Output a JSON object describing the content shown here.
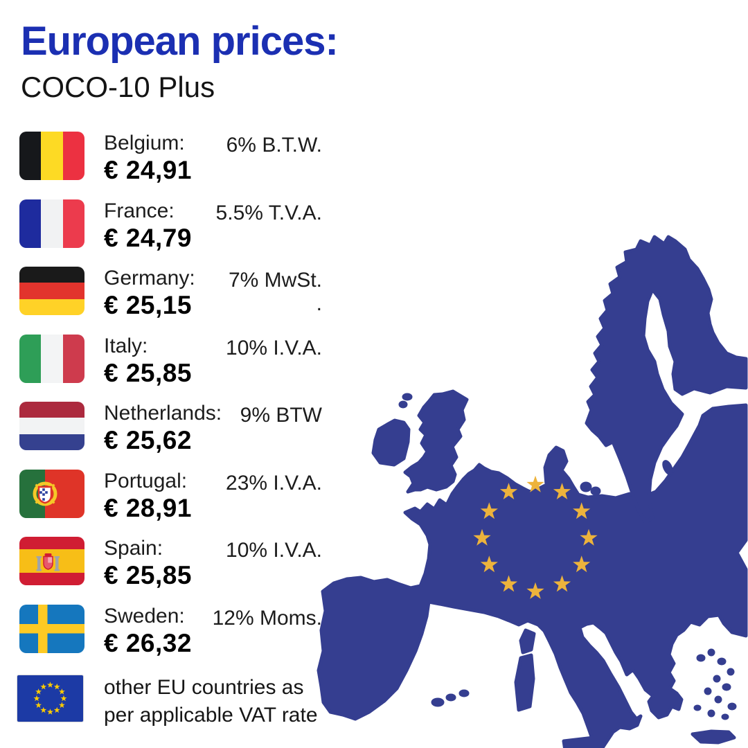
{
  "header": {
    "title": "European prices:",
    "subtitle": "COCO-10 Plus"
  },
  "colors": {
    "title_blue": "#1B2FB2",
    "map_blue": "#353E90",
    "map_star_gold": "#EDB33C",
    "text_dark": "#1c1c1c"
  },
  "rows": [
    {
      "country": "Belgium:",
      "price": "€ 24,91",
      "vat_lines": [
        "6% B.T.W."
      ],
      "flag": {
        "name": "belgium-flag",
        "type": "cols",
        "stripes": [
          "#16181B",
          "#FDDA24",
          "#EC3141"
        ]
      }
    },
    {
      "country": "France:",
      "price": "€ 24,79",
      "vat_lines": [
        "5.5% T.V.A."
      ],
      "flag": {
        "name": "france-flag",
        "type": "cols",
        "stripes": [
          "#1E2B9E",
          "#F1F2F3",
          "#EC3B4D"
        ]
      }
    },
    {
      "country": "Germany:",
      "price": "€ 25,15",
      "vat_lines": [
        "7% MwSt.",
        "."
      ],
      "flag": {
        "name": "germany-flag",
        "type": "rws",
        "stripes": [
          "#1A1A1A",
          "#E2342D",
          "#FFD227"
        ]
      }
    },
    {
      "country": "Italy:",
      "price": "€ 25,85",
      "vat_lines": [
        "10% I.V.A."
      ],
      "flag": {
        "name": "italy-flag",
        "type": "cols",
        "stripes": [
          "#2E9E57",
          "#F3F4F5",
          "#CE3B4D"
        ]
      }
    },
    {
      "country": "Netherlands:",
      "price": "€ 25,62",
      "vat_lines": [
        "9% BTW"
      ],
      "flag": {
        "name": "netherlands-flag",
        "type": "rws",
        "stripes": [
          "#AC2A3E",
          "#F2F3F4",
          "#35418F"
        ]
      }
    },
    {
      "country": "Portugal:",
      "price": "€ 28,91",
      "vat_lines": [
        "23% I.V.A."
      ],
      "flag": {
        "name": "portugal-flag",
        "type": "portugal",
        "green": "#26713C",
        "red": "#DF3428",
        "gold": "#F5C828",
        "shield_blue": "#2B3F9E"
      }
    },
    {
      "country": "Spain:",
      "price": "€ 25,85",
      "vat_lines": [
        "10% I.V.A."
      ],
      "flag": {
        "name": "spain-flag",
        "type": "spain",
        "red": "#D01D33",
        "yellow": "#F7BE17",
        "pillar": "#9FA4AA",
        "shield": "#E8586B"
      }
    },
    {
      "country": "Sweden:",
      "price": "€ 26,32",
      "vat_lines": [
        "12% Moms."
      ],
      "flag": {
        "name": "sweden-flag",
        "type": "sweden",
        "blue": "#1577BE",
        "yellow": "#FDCA24"
      }
    }
  ],
  "footer": {
    "lines": [
      "other EU countries as",
      "per applicable VAT rate"
    ],
    "flag": {
      "name": "eu-flag",
      "type": "eu",
      "blue": "#1C3AA5",
      "star": "#FFCC00"
    }
  },
  "map": {
    "name": "europe-map-silhouette",
    "star_count": 12
  }
}
